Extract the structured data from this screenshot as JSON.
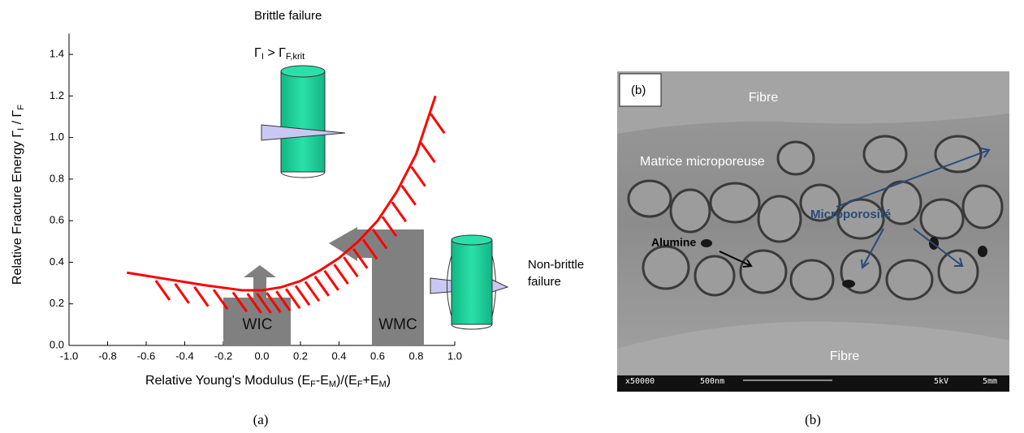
{
  "chart_data": {
    "type": "line",
    "x_label": [
      "Relative Young's Modulus (E",
      "F",
      "-E",
      "M",
      ")/(E",
      "F",
      "+E",
      "M",
      ")"
    ],
    "y_label": [
      "Relative Fracture Energy Γ",
      "I",
      " / Γ",
      "F"
    ],
    "x": [
      -0.7,
      -0.5,
      -0.3,
      -0.1,
      0,
      0.1,
      0.2,
      0.3,
      0.4,
      0.5,
      0.6,
      0.7,
      0.8,
      0.9
    ],
    "series": [
      {
        "color": "#ff0000",
        "values": [
          0.35,
          0.32,
          0.29,
          0.265,
          0.265,
          0.28,
          0.31,
          0.36,
          0.42,
          0.5,
          0.6,
          0.74,
          0.92,
          1.2
        ]
      }
    ],
    "xlim": [
      -1,
      1
    ],
    "xticks": [
      {
        "value": -1,
        "label": "-1.0"
      },
      {
        "value": -0.8,
        "label": "-0.8"
      },
      {
        "value": -0.6,
        "label": "-0.6"
      },
      {
        "value": -0.4,
        "label": "-0.4"
      },
      {
        "value": -0.2,
        "label": "-0.2"
      },
      {
        "value": 0,
        "label": "0.0"
      },
      {
        "value": 0.2,
        "label": "0.2"
      },
      {
        "value": 0.4,
        "label": "0.4"
      },
      {
        "value": 0.6,
        "label": "0.6"
      },
      {
        "value": 0.8,
        "label": "0.8"
      },
      {
        "value": 1,
        "label": "1.0"
      }
    ],
    "ylim": [
      0,
      1.5
    ],
    "yticks": [
      {
        "value": 0,
        "label": "0.0"
      },
      {
        "value": 0.2,
        "label": "0.2"
      },
      {
        "value": 0.4,
        "label": "0.4"
      },
      {
        "value": 0.6,
        "label": "0.6"
      },
      {
        "value": 0.8,
        "label": "0.8"
      },
      {
        "value": 1,
        "label": "1.0"
      },
      {
        "value": 1.2,
        "label": "1.2"
      },
      {
        "value": 1.4,
        "label": "1.4"
      }
    ],
    "annotations": {
      "brittle": "Brittle failure",
      "criterion": [
        "Γ",
        "I",
        " >  Γ",
        "F,krit"
      ],
      "non_brittle": [
        "Non-brittle",
        "failure"
      ],
      "wic": "WIC",
      "wmc": "WMC"
    }
  },
  "panel_b": {
    "tag": "(b)",
    "fibre_top": "Fibre",
    "matrix": "Matrice microporeuse",
    "porosity": "Microporosité",
    "alumina": "Alumine",
    "fibre_bottom": "Fibre",
    "scale_bar": [
      "x50000",
      "500nm",
      "5kV",
      "5mm"
    ]
  },
  "captions": [
    "(a)",
    "(b)"
  ]
}
